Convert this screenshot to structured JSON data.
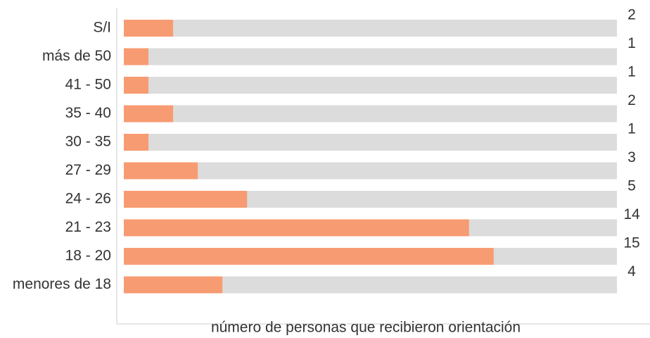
{
  "chart_data": {
    "type": "barh",
    "x_label": "número de personas que recibieron orientación",
    "categories": [
      "S/I",
      "más de 50",
      "41 - 50",
      "35 - 40",
      "30 - 35",
      "27 - 29",
      "24 - 26",
      "21 - 23",
      "18 - 20",
      "menores de 18"
    ],
    "values": [
      2,
      1,
      1,
      2,
      1,
      3,
      5,
      14,
      15,
      4
    ],
    "color": "#f79b72",
    "xlim": [
      0,
      20
    ]
  }
}
